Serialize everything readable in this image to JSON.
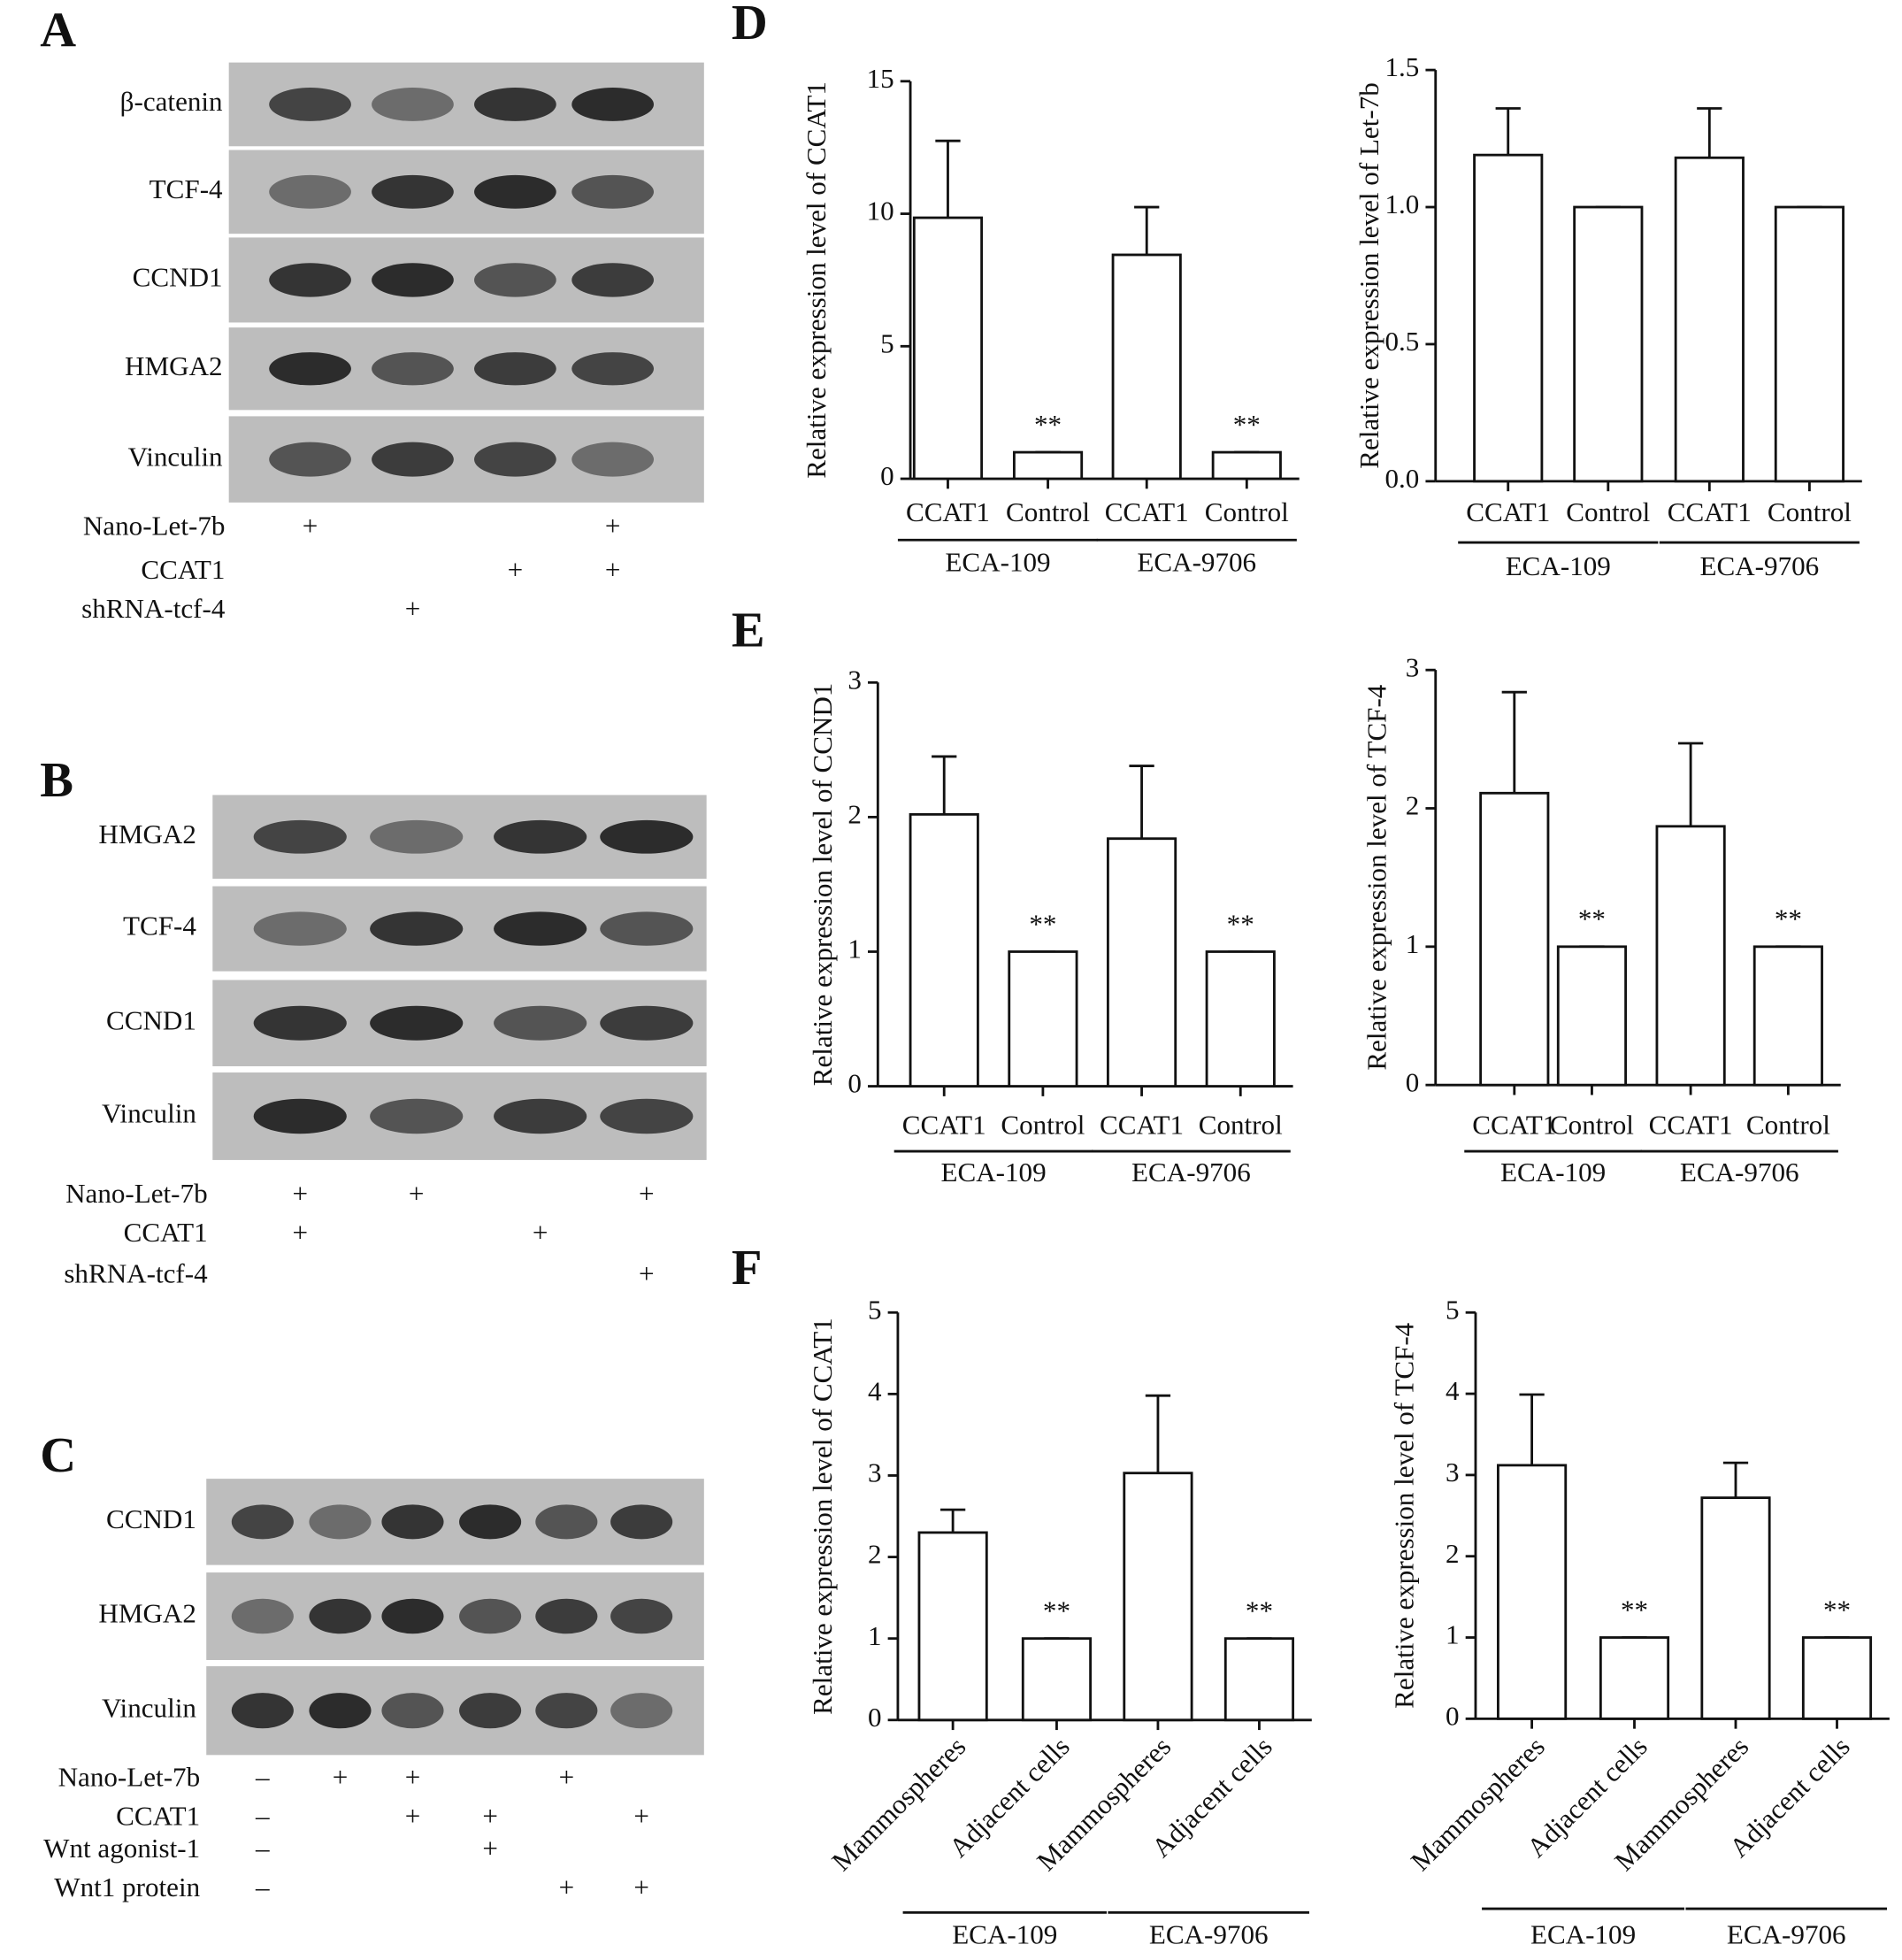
{
  "panel_labels": [
    "A",
    "B",
    "C",
    "D",
    "E",
    "F"
  ],
  "blots": [
    {
      "rows": [
        "β-catenin",
        "TCF-4",
        "CCND1",
        "HMGA2",
        "Vinculin"
      ],
      "treatments": [
        {
          "label": "Nano-Let-7b",
          "marks": [
            "+",
            null,
            null,
            "+"
          ]
        },
        {
          "label": "CCAT1",
          "marks": [
            null,
            null,
            "+",
            "+"
          ]
        },
        {
          "label": "shRNA-tcf-4",
          "marks": [
            null,
            "+",
            null,
            null
          ]
        }
      ]
    },
    {
      "rows": [
        "HMGA2",
        "TCF-4",
        "CCND1",
        "Vinculin"
      ],
      "treatments": [
        {
          "label": "Nano-Let-7b",
          "marks": [
            "+",
            "+",
            null,
            "+"
          ]
        },
        {
          "label": "CCAT1",
          "marks": [
            "+",
            null,
            "+",
            null
          ]
        },
        {
          "label": "shRNA-tcf-4",
          "marks": [
            null,
            null,
            null,
            "+"
          ]
        }
      ]
    },
    {
      "rows": [
        "CCND1",
        "HMGA2",
        "Vinculin"
      ],
      "treatments": [
        {
          "label": "Nano-Let-7b",
          "marks": [
            "–",
            "+",
            "+",
            null,
            "+",
            null
          ]
        },
        {
          "label": "CCAT1",
          "marks": [
            "–",
            null,
            "+",
            "+",
            null,
            "+"
          ]
        },
        {
          "label": "Wnt agonist-1",
          "marks": [
            "–",
            null,
            null,
            "+",
            null,
            null
          ]
        },
        {
          "label": "Wnt1 protein",
          "marks": [
            "–",
            null,
            null,
            null,
            "+",
            "+"
          ]
        }
      ]
    }
  ],
  "chart_data": [
    {
      "type": "bar",
      "y_label": "Relative expression level of CCAT1",
      "categories": [
        "CCAT1",
        "Control",
        "CCAT1",
        "Control"
      ],
      "groups": [
        "ECA-109",
        "ECA-9706"
      ],
      "values": [
        9.85,
        1,
        8.45,
        1
      ],
      "errors": [
        2.9,
        0,
        1.8,
        0
      ],
      "significance": [
        null,
        "**",
        null,
        "**"
      ],
      "ylim": [
        0,
        15
      ],
      "yticks": [
        0,
        5,
        10,
        15
      ],
      "color": "#ffffff"
    },
    {
      "type": "bar",
      "y_label": "Relative expression level of Let-7b",
      "categories": [
        "CCAT1",
        "Control",
        "CCAT1",
        "Control"
      ],
      "groups": [
        "ECA-109",
        "ECA-9706"
      ],
      "values": [
        1.19,
        1,
        1.18,
        1
      ],
      "errors": [
        0.17,
        0,
        0.18,
        0
      ],
      "ylim": [
        0,
        1.5
      ],
      "yticks": [
        {
          "value": 0,
          "label": "0.0"
        },
        0.5,
        {
          "value": 1,
          "label": "1.0"
        },
        1.5
      ],
      "color": "#ffffff"
    },
    {
      "type": "bar",
      "y_label": "Relative expression level of CCND1",
      "categories": [
        "CCAT1",
        "Control",
        "CCAT1",
        "Control"
      ],
      "groups": [
        "ECA-109",
        "ECA-9706"
      ],
      "values": [
        2.02,
        1,
        1.84,
        1
      ],
      "errors": [
        0.43,
        0,
        0.54,
        0
      ],
      "significance": [
        null,
        "**",
        null,
        "**"
      ],
      "ylim": [
        0,
        3
      ],
      "yticks": [
        0,
        1,
        2,
        3
      ],
      "color": "#ffffff"
    },
    {
      "type": "bar",
      "y_label": "Relative expression level of TCF-4",
      "categories": [
        "CCAT1",
        "Control",
        "CCAT1",
        "Control"
      ],
      "groups": [
        "ECA-109",
        "ECA-9706"
      ],
      "values": [
        2.11,
        1,
        1.87,
        1
      ],
      "errors": [
        0.73,
        0,
        0.6,
        0
      ],
      "significance": [
        null,
        "**",
        null,
        "**"
      ],
      "ylim": [
        0,
        3
      ],
      "yticks": [
        0,
        1,
        2,
        3
      ],
      "color": "#ffffff"
    },
    {
      "type": "bar",
      "y_label": "Relative expression level of CCAT1",
      "categories": [
        "Mammospheres",
        "Adjacent cells",
        "Mammospheres",
        "Adjacent cells"
      ],
      "groups": [
        "ECA-109",
        "ECA-9706"
      ],
      "values": [
        2.3,
        1,
        3.03,
        1
      ],
      "errors": [
        0.28,
        0,
        0.95,
        0
      ],
      "significance": [
        null,
        "**",
        null,
        "**"
      ],
      "ylim": [
        0,
        5
      ],
      "yticks": [
        0,
        1,
        2,
        3,
        4,
        5
      ],
      "color": "#ffffff"
    },
    {
      "type": "bar",
      "y_label": "Relative expression level of TCF-4",
      "categories": [
        "Mammospheres",
        "Adjacent cells",
        "Mammospheres",
        "Adjacent cells"
      ],
      "groups": [
        "ECA-109",
        "ECA-9706"
      ],
      "values": [
        3.12,
        1,
        2.72,
        1
      ],
      "errors": [
        0.87,
        0,
        0.43,
        0
      ],
      "significance": [
        null,
        "**",
        null,
        "**"
      ],
      "ylim": [
        0,
        5
      ],
      "yticks": [
        0,
        1,
        2,
        3,
        4,
        5
      ],
      "color": "#ffffff"
    }
  ]
}
